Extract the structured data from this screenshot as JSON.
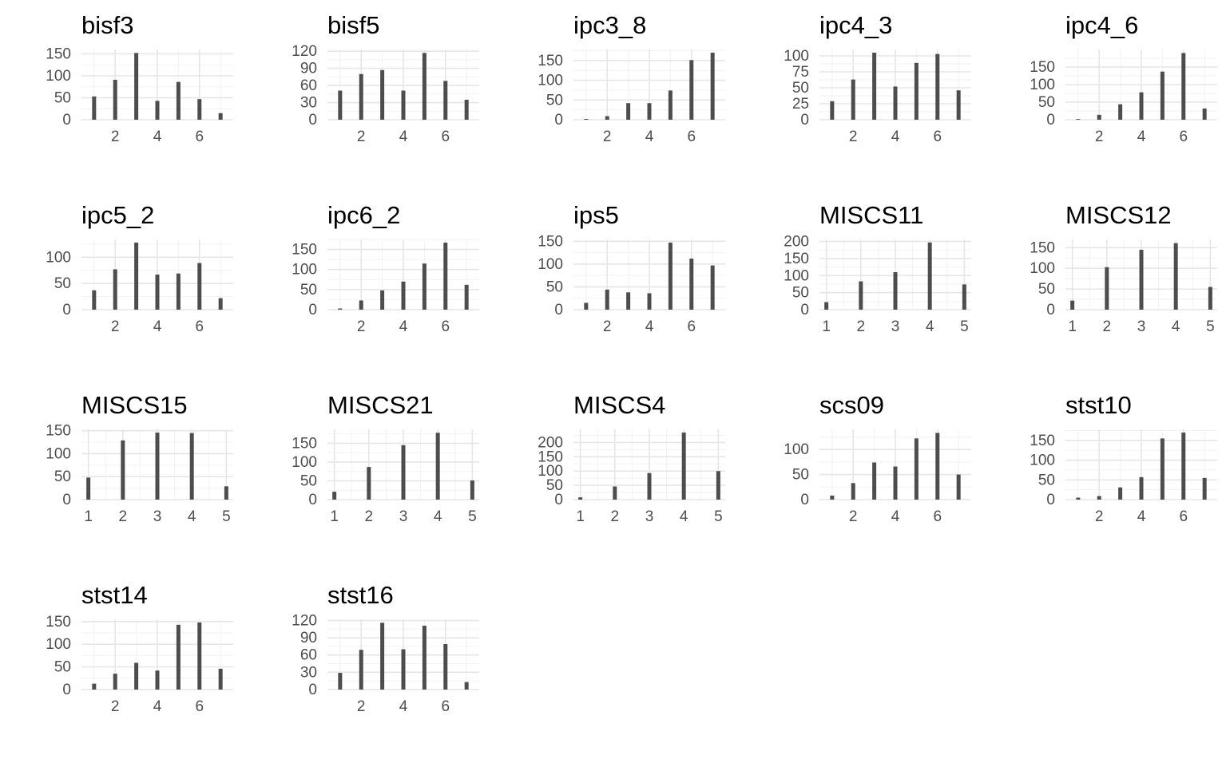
{
  "chart_data": [
    {
      "type": "bar",
      "title": "bisf3",
      "x": [
        1,
        2,
        3,
        4,
        5,
        6,
        7
      ],
      "values": [
        53,
        91,
        152,
        43,
        86,
        47,
        15
      ],
      "ylim": [
        0,
        160
      ],
      "yticks": [
        0,
        50,
        100,
        150
      ],
      "xticks": [
        2,
        4,
        6
      ],
      "xlim": [
        0.4,
        7.6
      ]
    },
    {
      "type": "bar",
      "title": "bisf5",
      "x": [
        1,
        2,
        3,
        4,
        5,
        6,
        7
      ],
      "values": [
        51,
        80,
        87,
        51,
        117,
        68,
        35
      ],
      "ylim": [
        0,
        123
      ],
      "yticks": [
        0,
        30,
        60,
        90,
        120
      ],
      "xticks": [
        2,
        4,
        6
      ],
      "xlim": [
        0.4,
        7.6
      ]
    },
    {
      "type": "bar",
      "title": "ipc3_8",
      "x": [
        1,
        2,
        3,
        4,
        5,
        6,
        7
      ],
      "values": [
        2,
        9,
        42,
        42,
        74,
        151,
        170
      ],
      "ylim": [
        0,
        178
      ],
      "yticks": [
        0,
        50,
        100,
        150
      ],
      "xticks": [
        2,
        4,
        6
      ],
      "xlim": [
        0.4,
        7.6
      ]
    },
    {
      "type": "bar",
      "title": "ipc4_3",
      "x": [
        1,
        2,
        3,
        4,
        5,
        6,
        7
      ],
      "values": [
        29,
        63,
        105,
        52,
        89,
        103,
        46
      ],
      "ylim": [
        0,
        110
      ],
      "yticks": [
        0,
        25,
        50,
        75,
        100
      ],
      "xticks": [
        2,
        4,
        6
      ],
      "xlim": [
        0.4,
        7.6
      ]
    },
    {
      "type": "bar",
      "title": "ipc4_6",
      "x": [
        1,
        2,
        3,
        4,
        5,
        6,
        7
      ],
      "values": [
        2,
        14,
        44,
        78,
        137,
        190,
        32
      ],
      "ylim": [
        0,
        200
      ],
      "yticks": [
        0,
        50,
        100,
        150
      ],
      "xticks": [
        2,
        4,
        6
      ],
      "xlim": [
        0.4,
        7.6
      ]
    },
    {
      "type": "bar",
      "title": "ipc5_2",
      "x": [
        1,
        2,
        3,
        4,
        5,
        6,
        7
      ],
      "values": [
        37,
        77,
        128,
        67,
        69,
        89,
        22
      ],
      "ylim": [
        0,
        134
      ],
      "yticks": [
        0,
        50,
        100
      ],
      "xticks": [
        2,
        4,
        6
      ],
      "xlim": [
        0.4,
        7.6
      ]
    },
    {
      "type": "bar",
      "title": "ipc6_2",
      "x": [
        1,
        2,
        3,
        4,
        5,
        6,
        7
      ],
      "values": [
        3,
        23,
        48,
        70,
        115,
        167,
        62
      ],
      "ylim": [
        0,
        175
      ],
      "yticks": [
        0,
        50,
        100,
        150
      ],
      "xticks": [
        2,
        4,
        6
      ],
      "xlim": [
        0.4,
        7.6
      ]
    },
    {
      "type": "bar",
      "title": "ips5",
      "x": [
        1,
        2,
        3,
        4,
        5,
        6,
        7
      ],
      "values": [
        15,
        44,
        38,
        36,
        147,
        112,
        97
      ],
      "ylim": [
        0,
        154
      ],
      "yticks": [
        0,
        50,
        100,
        150
      ],
      "xticks": [
        2,
        4,
        6
      ],
      "xlim": [
        0.4,
        7.6
      ]
    },
    {
      "type": "bar",
      "title": "MISCS11",
      "x": [
        1,
        2,
        3,
        4,
        5
      ],
      "values": [
        22,
        83,
        110,
        197,
        74
      ],
      "ylim": [
        0,
        206
      ],
      "yticks": [
        0,
        50,
        100,
        150,
        200
      ],
      "xticks": [
        1,
        2,
        3,
        4,
        5
      ],
      "xlim": [
        0.8,
        5.2
      ]
    },
    {
      "type": "bar",
      "title": "MISCS12",
      "x": [
        1,
        2,
        3,
        4,
        5
      ],
      "values": [
        22,
        103,
        145,
        161,
        55
      ],
      "ylim": [
        0,
        170
      ],
      "yticks": [
        0,
        50,
        100,
        150
      ],
      "xticks": [
        1,
        2,
        3,
        4,
        5
      ],
      "xlim": [
        0.8,
        5.2
      ]
    },
    {
      "type": "bar",
      "title": "MISCS15",
      "x": [
        1,
        2,
        3,
        4,
        5
      ],
      "values": [
        48,
        129,
        146,
        145,
        29
      ],
      "ylim": [
        0,
        153
      ],
      "yticks": [
        0,
        50,
        100,
        150
      ],
      "xticks": [
        1,
        2,
        3,
        4,
        5
      ],
      "xlim": [
        0.8,
        5.2
      ]
    },
    {
      "type": "bar",
      "title": "MISCS21",
      "x": [
        1,
        2,
        3,
        4,
        5
      ],
      "values": [
        21,
        87,
        145,
        178,
        51
      ],
      "ylim": [
        0,
        187
      ],
      "yticks": [
        0,
        50,
        100,
        150
      ],
      "xticks": [
        1,
        2,
        3,
        4,
        5
      ],
      "xlim": [
        0.8,
        5.2
      ]
    },
    {
      "type": "bar",
      "title": "MISCS4",
      "x": [
        1,
        2,
        3,
        4,
        5
      ],
      "values": [
        8,
        46,
        93,
        235,
        100
      ],
      "ylim": [
        0,
        246
      ],
      "yticks": [
        0,
        50,
        100,
        150,
        200
      ],
      "xticks": [
        1,
        2,
        3,
        4,
        5
      ],
      "xlim": [
        0.8,
        5.2
      ]
    },
    {
      "type": "bar",
      "title": "scs09",
      "x": [
        1,
        2,
        3,
        4,
        5,
        6,
        7
      ],
      "values": [
        8,
        33,
        74,
        66,
        122,
        133,
        50
      ],
      "ylim": [
        0,
        140
      ],
      "yticks": [
        0,
        50,
        100
      ],
      "xticks": [
        2,
        4,
        6
      ],
      "xlim": [
        0.4,
        7.6
      ]
    },
    {
      "type": "bar",
      "title": "stst10",
      "x": [
        1,
        2,
        3,
        4,
        5,
        6,
        7
      ],
      "values": [
        5,
        9,
        31,
        57,
        155,
        170,
        55
      ],
      "ylim": [
        0,
        178
      ],
      "yticks": [
        0,
        50,
        100,
        150
      ],
      "xticks": [
        2,
        4,
        6
      ],
      "xlim": [
        0.4,
        7.6
      ]
    },
    {
      "type": "bar",
      "title": "stst14",
      "x": [
        1,
        2,
        3,
        4,
        5,
        6,
        7
      ],
      "values": [
        13,
        35,
        59,
        42,
        143,
        148,
        46
      ],
      "ylim": [
        0,
        155
      ],
      "yticks": [
        0,
        50,
        100,
        150
      ],
      "xticks": [
        2,
        4,
        6
      ],
      "xlim": [
        0.4,
        7.6
      ]
    },
    {
      "type": "bar",
      "title": "stst16",
      "x": [
        1,
        2,
        3,
        4,
        5,
        6,
        7
      ],
      "values": [
        29,
        69,
        116,
        70,
        111,
        79,
        13
      ],
      "ylim": [
        0,
        122
      ],
      "yticks": [
        0,
        30,
        60,
        90,
        120
      ],
      "xticks": [
        2,
        4,
        6
      ],
      "xlim": [
        0.4,
        7.6
      ]
    }
  ],
  "colors": {
    "bar": "#4d4d4d",
    "grid_major": "#e6e6e6",
    "grid_minor": "#f2f2f2",
    "text": "#000000",
    "tick_text": "#4d4d4d"
  }
}
